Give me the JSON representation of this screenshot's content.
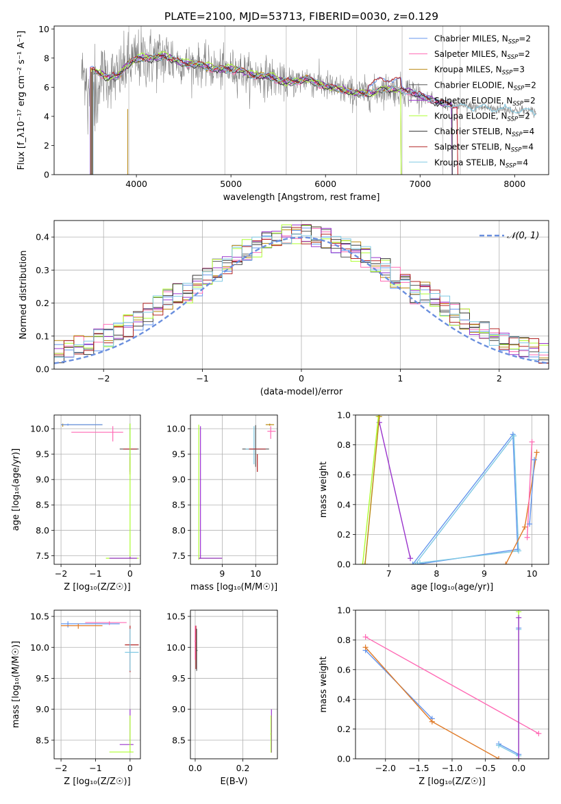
{
  "figure_title": "PLATE=2100, MJD=53713, FIBERID=0030, z=0.129",
  "model_colors": [
    "#6495ed",
    "#ff69b4",
    "#b8860b",
    "#555555",
    "#9932cc",
    "#adff2f",
    "#333333",
    "#b22222",
    "#7ec8e3"
  ],
  "chart_data": [
    {
      "id": "spectrum",
      "type": "line",
      "title": "PLATE=2100, MJD=53713, FIBERID=0030, z=0.129",
      "xlabel": "wavelength [Angstrom, rest frame]",
      "ylabel": "Flux [f_λ10⁻¹⁷ erg cm⁻² s⁻¹ A⁻¹]",
      "xlim": [
        3130,
        8360
      ],
      "ylim": [
        0,
        10.2
      ],
      "xticks": [
        4000,
        5000,
        6000,
        7000,
        8000
      ],
      "yticks": [
        0,
        2,
        4,
        6,
        8,
        10
      ],
      "grid": false,
      "legend_position": "upper right",
      "legend": [
        {
          "label": "Chabrier MILES, N",
          "sub": "SSP",
          "suffix": "=2"
        },
        {
          "label": "Salpeter MILES, N",
          "sub": "SSP",
          "suffix": "=2"
        },
        {
          "label": "Kroupa MILES, N",
          "sub": "SSP",
          "suffix": "=3"
        },
        {
          "label": "Chabrier ELODIE, N",
          "sub": "SSP",
          "suffix": "=2"
        },
        {
          "label": "Salpeter ELODIE, N",
          "sub": "SSP",
          "suffix": "=2"
        },
        {
          "label": "Kroupa ELODIE, N",
          "sub": "SSP",
          "suffix": "=2"
        },
        {
          "label": "Chabrier STELIB, N",
          "sub": "SSP",
          "suffix": "=4"
        },
        {
          "label": "Salpeter STELIB, N",
          "sub": "SSP",
          "suffix": "=4"
        },
        {
          "label": "Kroupa STELIB, N",
          "sub": "SSP",
          "suffix": "=4"
        }
      ],
      "continuum_x": [
        3450,
        3520,
        3600,
        3700,
        3800,
        3900,
        4000,
        4100,
        4200,
        4300,
        4400,
        4500,
        4600,
        4700,
        4800,
        4900,
        5000,
        5100,
        5200,
        5300,
        5400,
        5500,
        5600,
        5700,
        5800,
        5900,
        6000,
        6100,
        6200,
        6300,
        6400,
        6500,
        6600,
        6700,
        6800,
        6900,
        7000,
        7100,
        7200,
        7300,
        7400,
        7500,
        7600,
        7700,
        7800,
        7900,
        8000,
        8100,
        8200
      ],
      "continuum_y": [
        6.9,
        7.2,
        7.0,
        6.7,
        6.7,
        7.5,
        7.9,
        8.0,
        8.0,
        8.1,
        7.9,
        7.6,
        7.6,
        7.5,
        7.3,
        7.2,
        7.2,
        7.2,
        6.8,
        6.8,
        6.7,
        6.5,
        6.3,
        6.4,
        6.6,
        6.3,
        6.1,
        5.9,
        5.8,
        5.6,
        5.6,
        5.6,
        5.9,
        5.9,
        5.8,
        5.7,
        5.4,
        5.2,
        4.9,
        4.8,
        4.7,
        4.7,
        4.6,
        4.6,
        4.5,
        4.5,
        4.4,
        4.4,
        4.3
      ]
    },
    {
      "id": "residuals",
      "type": "step",
      "xlabel": "(data-model)/error",
      "ylabel": "Normed distribution",
      "xlim": [
        -2.5,
        2.5
      ],
      "ylim": [
        0,
        0.45
      ],
      "xticks": [
        -2,
        -1,
        0,
        1,
        2
      ],
      "yticks": [
        0.0,
        0.1,
        0.2,
        0.3,
        0.4
      ],
      "grid": true,
      "legend_position": "upper right",
      "reference_curve": {
        "label": "𝒩(0, 1)",
        "mean": 0,
        "sigma": 1
      }
    },
    {
      "id": "age-vs-Z",
      "type": "errorbar",
      "xlabel": "Z [log₁₀(Z/Z☉)]",
      "ylabel": "age  [log₁₀(age/yr)]",
      "xlim": [
        -2.2,
        0.3
      ],
      "ylim": [
        7.33,
        10.27
      ],
      "xticks": [
        -2,
        -1,
        0
      ],
      "yticks": [
        7.5,
        8.0,
        8.5,
        9.0,
        9.5,
        10.0
      ],
      "grid": true
    },
    {
      "id": "age-vs-mass",
      "type": "errorbar",
      "xlabel": "mass [log₁₀(M/M☉)]",
      "ylabel": "",
      "xlim": [
        8.05,
        10.65
      ],
      "ylim": [
        7.33,
        10.27
      ],
      "xticks": [
        9,
        10
      ],
      "yticks": [
        7.5,
        8.0,
        8.5,
        9.0,
        9.5,
        10.0
      ],
      "grid": true
    },
    {
      "id": "weight-vs-age",
      "type": "line",
      "xlabel": "age  [log₁₀(age/yr)]",
      "ylabel": "mass weight",
      "xlim": [
        6.3,
        10.35
      ],
      "ylim": [
        0,
        1
      ],
      "xticks": [
        7,
        8,
        9,
        10
      ],
      "yticks": [
        0.0,
        0.2,
        0.4,
        0.6,
        0.8,
        1.0
      ],
      "grid": true
    },
    {
      "id": "mass-vs-Z",
      "type": "errorbar",
      "xlabel": "Z [log₁₀(Z/Z☉)]",
      "ylabel": "mass [log₁₀(M/M☉)]",
      "xlim": [
        -2.2,
        0.3
      ],
      "ylim": [
        8.2,
        10.6
      ],
      "xticks": [
        -2,
        -1,
        0
      ],
      "yticks": [
        8.5,
        9.0,
        9.5,
        10.0,
        10.5
      ],
      "grid": true
    },
    {
      "id": "mass-vs-ebv",
      "type": "errorbar",
      "xlabel": "E(B-V)",
      "ylabel": "",
      "xlim": [
        -0.02,
        0.345
      ],
      "ylim": [
        8.2,
        10.6
      ],
      "xticks": [
        0.0,
        0.2
      ],
      "yticks": [
        8.5,
        9.0,
        9.5,
        10.0,
        10.5
      ],
      "grid": true
    },
    {
      "id": "weight-vs-Z",
      "type": "line",
      "xlabel": "Z [log₁₀(Z/Z☉)]",
      "ylabel": "mass weight",
      "xlim": [
        -2.45,
        0.45
      ],
      "ylim": [
        0,
        1
      ],
      "xticks": [
        -2.0,
        -1.5,
        -1.0,
        -0.5,
        0.0
      ],
      "yticks": [
        0.0,
        0.2,
        0.4,
        0.6,
        0.8,
        1.0
      ],
      "grid": true
    }
  ]
}
